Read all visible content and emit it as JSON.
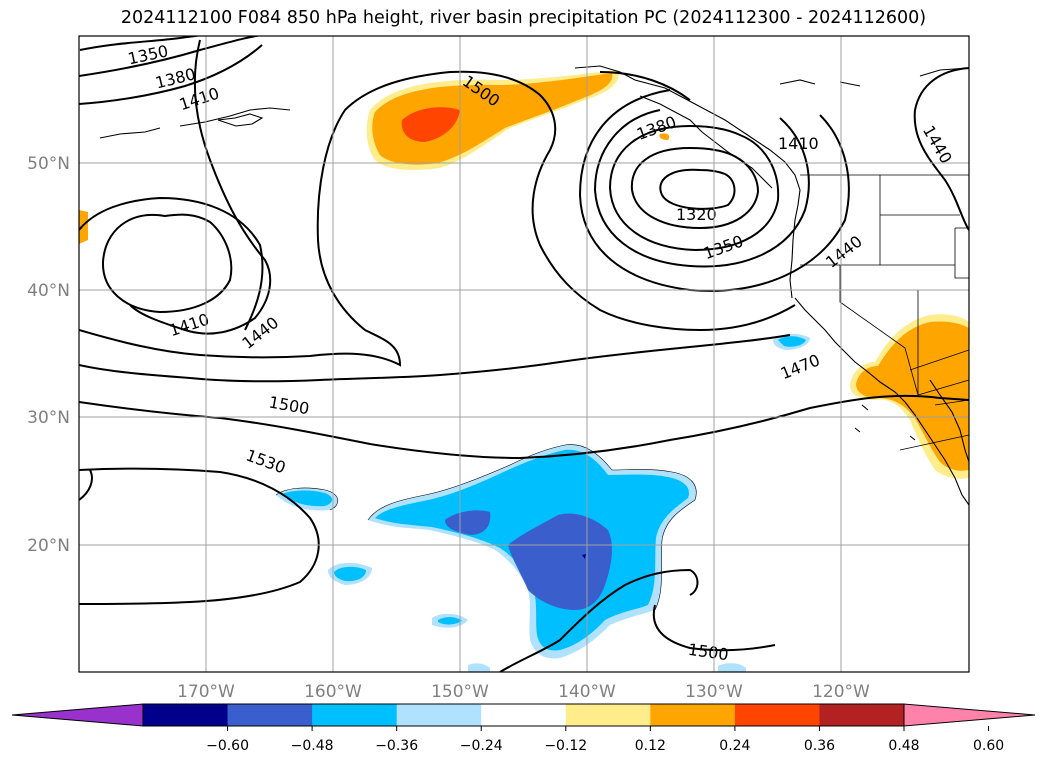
{
  "title": "2024112100 F084 850 hPa height, river basin precipitation PC (2024112300 - 2024112600)",
  "lat_labels": [
    "50°N",
    "40°N",
    "30°N",
    "20°N"
  ],
  "lon_labels": [
    "170°W",
    "160°W",
    "150°W",
    "140°W",
    "130°W",
    "120°W"
  ],
  "contour_labels": [
    "1350",
    "1380",
    "1410",
    "1500",
    "1380",
    "1410",
    "1440",
    "1320",
    "1350",
    "1440",
    "1410",
    "1440",
    "1470",
    "1500",
    "1530",
    "1500"
  ],
  "colorbar": {
    "ticks": [
      "−0.60",
      "−0.48",
      "−0.36",
      "−0.24",
      "−0.12",
      "0.12",
      "0.24",
      "0.36",
      "0.48",
      "0.60"
    ],
    "colors": [
      "#9932cc",
      "#00008b",
      "#3a5fcd",
      "#00bfff",
      "#b0e2ff",
      "#ffffff",
      "#ffec8b",
      "#ffa500",
      "#ff4500",
      "#b22222",
      "#ff82ab"
    ]
  }
}
